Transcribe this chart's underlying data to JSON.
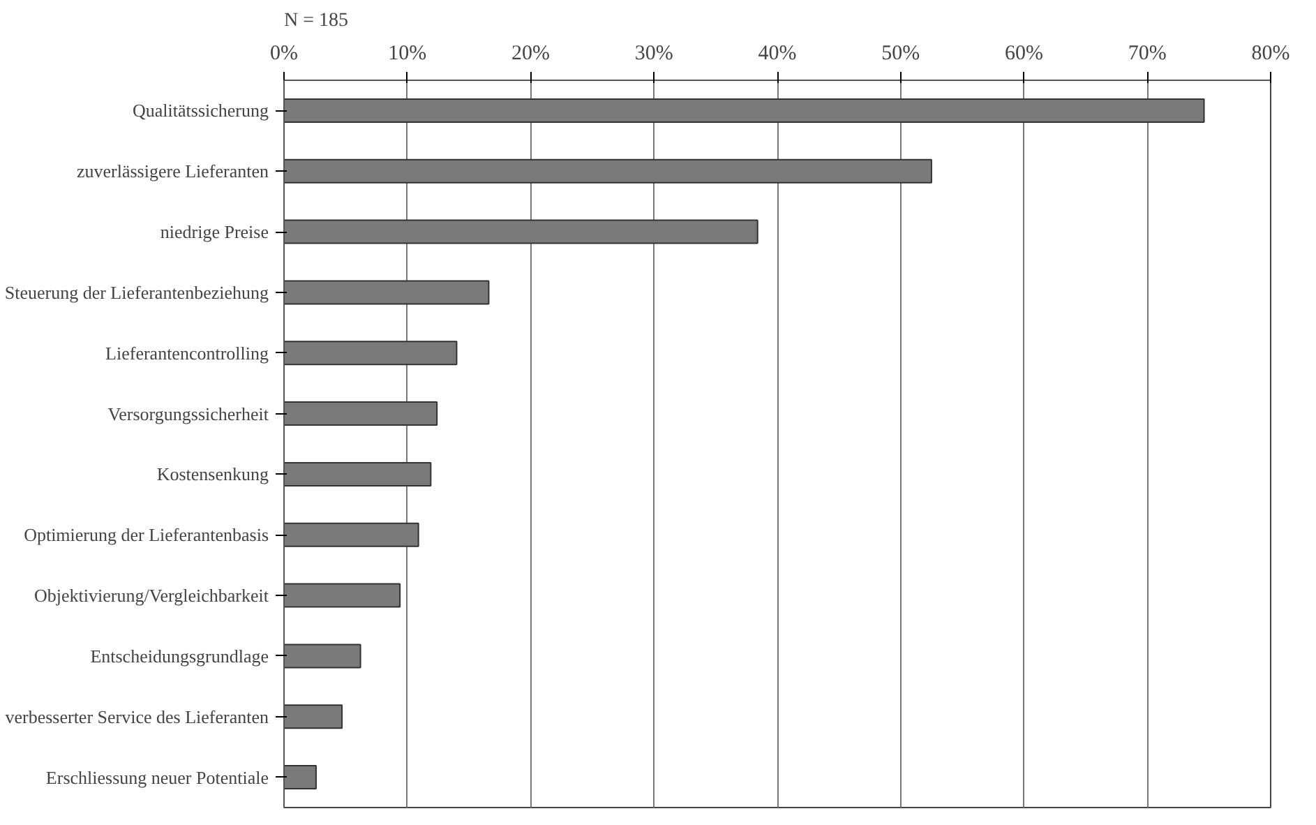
{
  "chart_data": {
    "type": "bar",
    "orientation": "horizontal",
    "categories": [
      "Qualitätssicherung",
      "zuverlässigere Lieferanten",
      "niedrige Preise",
      "Steuerung der Lieferantenbeziehung",
      "Lieferantencontrolling",
      "Versorgungssicherheit",
      "Kostensenkung",
      "Optimierung der Lieferantenbasis",
      "Objektivierung/Vergleichbarkeit",
      "Entscheidungsgrundlage",
      "verbesserter Service des Lieferanten",
      "Erschliessung neuer Potentiale"
    ],
    "values": [
      74.6,
      52.5,
      38.4,
      16.6,
      14.0,
      12.4,
      11.9,
      10.9,
      9.4,
      6.2,
      4.7,
      2.6
    ],
    "color": "#7a7a7a",
    "xlim": [
      0,
      80
    ],
    "xticks": [
      {
        "value": 0,
        "label": "0%"
      },
      {
        "value": 10,
        "label": "10%"
      },
      {
        "value": 20,
        "label": "20%"
      },
      {
        "value": 30,
        "label": "30%"
      },
      {
        "value": 40,
        "label": "40%"
      },
      {
        "value": 50,
        "label": "50%"
      },
      {
        "value": 60,
        "label": "60%"
      },
      {
        "value": 70,
        "label": "70%"
      },
      {
        "value": 80,
        "label": "80%"
      }
    ],
    "grid": "x",
    "annotations": [
      "N = 185"
    ]
  }
}
